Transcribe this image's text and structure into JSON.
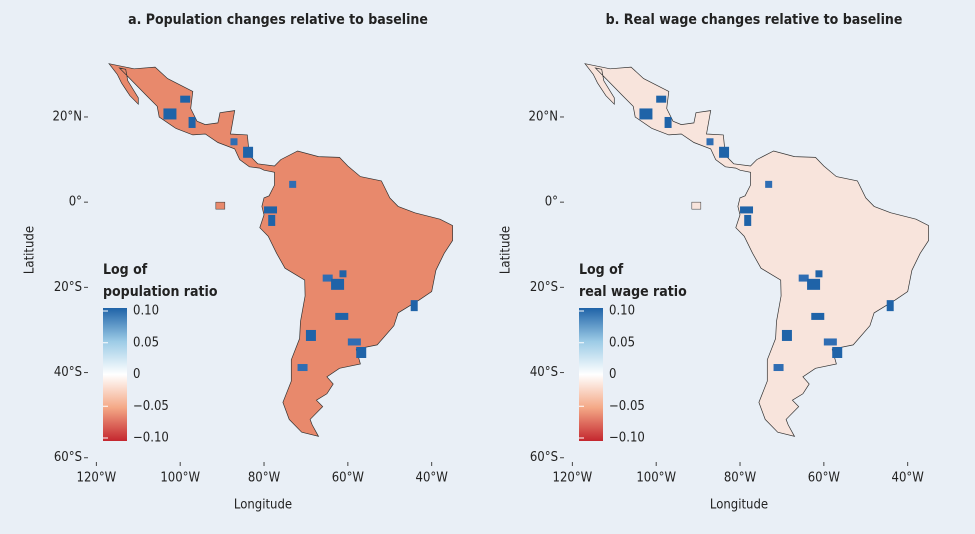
{
  "panels": [
    {
      "title": "a. Population changes relative to baseline",
      "x_label": "Longitude",
      "y_label": "Latitude",
      "xlim": [
        -122,
        -33
      ],
      "ylim": [
        -61,
        37.6
      ],
      "xticks": [
        {
          "value": -120,
          "label": "120°W"
        },
        {
          "value": -100,
          "label": "100°W"
        },
        {
          "value": -80,
          "label": "80°W"
        },
        {
          "value": -60,
          "label": "60°W"
        },
        {
          "value": -40,
          "label": "40°W"
        }
      ],
      "yticks": [
        {
          "value": 20,
          "label": "20°N"
        },
        {
          "value": 0,
          "label": "0°"
        },
        {
          "value": -20,
          "label": "20°S"
        },
        {
          "value": -40,
          "label": "40°S"
        },
        {
          "value": -60,
          "label": "60°S"
        }
      ],
      "map_color": "#e8896c",
      "legend": {
        "title": [
          "Log of",
          "population ratio"
        ],
        "colors": [
          "#c4262e",
          "#f4a886",
          "#ffffff",
          "#9ccbe6",
          "#1f63a8"
        ],
        "ticks": [
          {
            "value": 0.1,
            "label": "0.10"
          },
          {
            "value": 0.05,
            "label": "0.05"
          },
          0,
          {
            "value": -0.05,
            "label": "−0.05"
          },
          {
            "value": -0.1,
            "label": "−0.10"
          }
        ]
      }
    },
    {
      "title": "b. Real wage changes relative to baseline",
      "x_label": "Longitude",
      "y_label": "Latitude",
      "xlim": [
        -122,
        -33
      ],
      "ylim": [
        -61,
        37.6
      ],
      "xticks": [
        {
          "value": -120,
          "label": "120°W"
        },
        {
          "value": -100,
          "label": "100°W"
        },
        {
          "value": -80,
          "label": "80°W"
        },
        {
          "value": -60,
          "label": "60°W"
        },
        {
          "value": -40,
          "label": "40°W"
        }
      ],
      "yticks": [
        {
          "value": 20,
          "label": "20°N"
        },
        {
          "value": 0,
          "label": "0°"
        },
        {
          "value": -20,
          "label": "20°S"
        },
        {
          "value": -40,
          "label": "40°S"
        },
        {
          "value": -60,
          "label": "60°S"
        }
      ],
      "map_color": "#f8e4dc",
      "legend": {
        "title": [
          "Log of",
          "real wage ratio"
        ],
        "colors": [
          "#c4262e",
          "#f4a886",
          "#ffffff",
          "#9ccbe6",
          "#1f63a8"
        ],
        "ticks": [
          {
            "value": 0.1,
            "label": "0.10"
          },
          {
            "value": 0.05,
            "label": "0.05"
          },
          0,
          {
            "value": -0.05,
            "label": "−0.05"
          },
          {
            "value": -0.1,
            "label": "−0.10"
          }
        ]
      }
    }
  ]
}
